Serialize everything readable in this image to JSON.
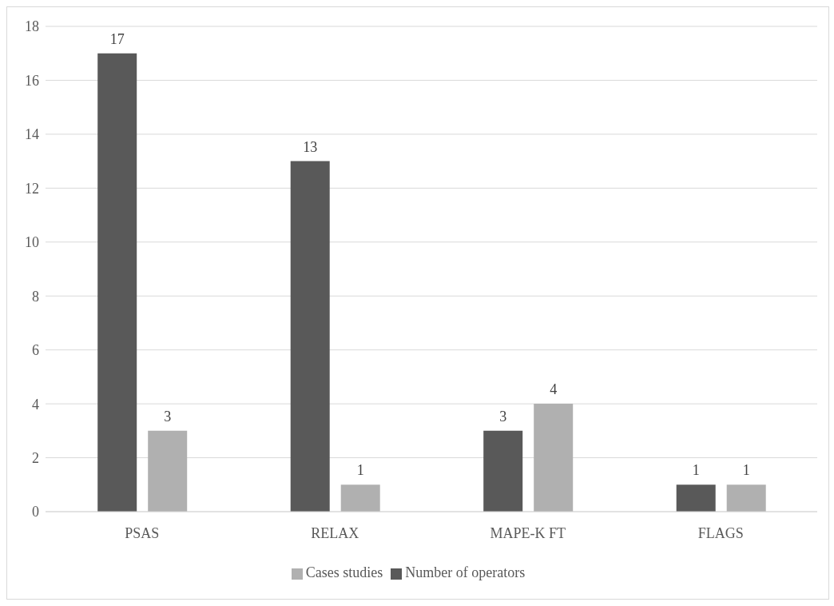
{
  "chart_data": {
    "type": "bar",
    "categories": [
      "PSAS",
      "RELAX",
      "MAPE-K FT",
      "FLAGS"
    ],
    "series": [
      {
        "name": "Number of operators",
        "color": "#595959",
        "values": [
          17,
          13,
          3,
          1
        ]
      },
      {
        "name": "Cases studies",
        "color": "#b0b0b0",
        "values": [
          3,
          1,
          4,
          1
        ]
      }
    ],
    "ylim": [
      0,
      18
    ],
    "yticks": [
      0,
      2,
      4,
      6,
      8,
      10,
      12,
      14,
      16,
      18
    ],
    "grid": "y",
    "legend": "bottom",
    "data_labels": true
  }
}
